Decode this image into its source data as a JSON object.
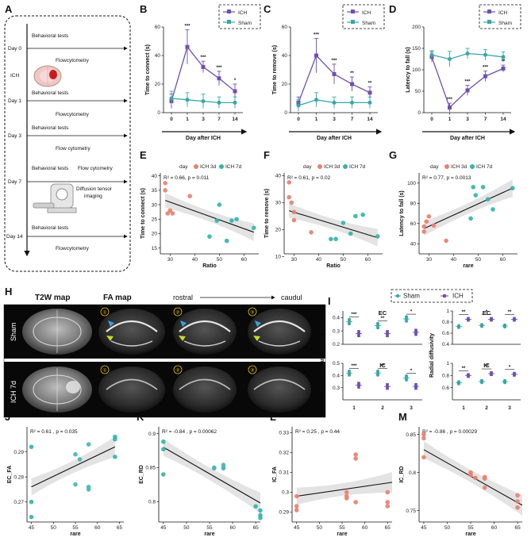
{
  "panel_labels": {
    "A": "A",
    "B": "B",
    "C": "C",
    "D": "D",
    "E": "E",
    "F": "F",
    "G": "G",
    "H": "H",
    "I": "I",
    "J": "J",
    "K": "K",
    "L": "L",
    "M": "M"
  },
  "colors": {
    "ich": "#6f4fb0",
    "sham": "#3aa6a8",
    "ich3d": "#e8806f",
    "ich7d": "#33b5ad",
    "line": "#111111",
    "band": "#d9d9d9"
  },
  "timeline": {
    "events": [
      {
        "day": "Day 0",
        "items": [
          "Behavioral tests",
          "Flowcytometry"
        ]
      },
      {
        "day": "ICH",
        "items": []
      },
      {
        "day": "Day 1",
        "items": [
          "Behavioral tests",
          "Flowcytometry"
        ]
      },
      {
        "day": "Day 3",
        "items": [
          "Behavioral tests",
          "Flow cytometry"
        ]
      },
      {
        "day": "Day 7",
        "items": [
          "Behavioral tests",
          "Flow cytometry",
          "Diffusion tensor",
          "imaging"
        ]
      },
      {
        "day": "Day 14",
        "items": [
          "Behavioral tests",
          "Flowcytometry"
        ]
      }
    ]
  },
  "line_legend": {
    "ich": "ICH",
    "sham": "Sham"
  },
  "day_legend": {
    "title": "day",
    "a": "ICH 3d",
    "b": "ICH 7d"
  },
  "mri": {
    "col_t2w": "T2W map",
    "col_fa": "FA map",
    "rostral": "rostral",
    "caudal": "caudul",
    "row_sham": "Sham",
    "row_ich": "ICH 7d",
    "circles": [
      "①",
      "②",
      "③"
    ]
  },
  "panel_i": {
    "legend_sham": "Sham",
    "legend_ich": "ICH"
  },
  "chart_data": [
    {
      "id": "B",
      "type": "line",
      "title": "",
      "xlabel": "Day after ICH",
      "ylabel": "Time to connect (s)",
      "categories": [
        "0",
        "1",
        "3",
        "7",
        "14"
      ],
      "ylim": [
        0,
        60
      ],
      "yticks": [
        0,
        20,
        40,
        60
      ],
      "series": [
        {
          "name": "ICH",
          "values": [
            8,
            46,
            32,
            24,
            15
          ],
          "err": [
            5,
            12,
            4,
            5,
            5
          ]
        },
        {
          "name": "Sham",
          "values": [
            10,
            9,
            8,
            7,
            7
          ],
          "err": [
            5,
            5,
            5,
            4,
            4
          ]
        }
      ],
      "sig": [
        "",
        "***",
        "***",
        "***",
        "*"
      ]
    },
    {
      "id": "C",
      "type": "line",
      "title": "",
      "xlabel": "Day after ICH",
      "ylabel": "Time to remove (s)",
      "categories": [
        "0",
        "1",
        "3",
        "7",
        "14"
      ],
      "ylim": [
        0,
        60
      ],
      "yticks": [
        0,
        20,
        40,
        60
      ],
      "series": [
        {
          "name": "ICH",
          "values": [
            7,
            40,
            27,
            20,
            14
          ],
          "err": [
            4,
            12,
            7,
            5,
            4
          ]
        },
        {
          "name": "Sham",
          "values": [
            5,
            9,
            7,
            7,
            7
          ],
          "err": [
            4,
            5,
            4,
            4,
            4
          ]
        }
      ],
      "sig": [
        "",
        "***",
        "***",
        "**",
        "**"
      ]
    },
    {
      "id": "D",
      "type": "line",
      "title": "",
      "xlabel": "Day after ICH",
      "ylabel": "Latency to fall (s)",
      "categories": [
        "0",
        "1",
        "3",
        "7",
        "14"
      ],
      "ylim": [
        0,
        200
      ],
      "yticks": [
        0,
        50,
        100,
        150,
        200
      ],
      "series": [
        {
          "name": "ICH",
          "values": [
            130,
            12,
            52,
            85,
            103
          ],
          "err": [
            12,
            10,
            12,
            12,
            8
          ]
        },
        {
          "name": "Sham",
          "values": [
            135,
            125,
            138,
            135,
            130
          ],
          "err": [
            10,
            18,
            12,
            12,
            12
          ]
        }
      ],
      "sig": [
        "",
        "***",
        "***",
        "***",
        "**"
      ]
    },
    {
      "id": "E",
      "type": "scatter",
      "title": "",
      "xlabel": "Ratio",
      "ylabel": "Time to connect (s)",
      "stat": "R² = 0.66, p = 0.011",
      "xlim": [
        26,
        66
      ],
      "ylim": [
        13,
        41
      ],
      "xticks": [
        30,
        40,
        50,
        60
      ],
      "yticks": [
        15,
        20,
        25,
        30,
        35,
        40
      ],
      "fit": [
        [
          28,
          31.5
        ],
        [
          64,
          20.5
        ]
      ],
      "series": [
        {
          "name": "ICH 3d",
          "points": [
            [
              28,
              37.5
            ],
            [
              28,
              35
            ],
            [
              29,
              27
            ],
            [
              30,
              28
            ],
            [
              31,
              27
            ],
            [
              38,
              33
            ]
          ]
        },
        {
          "name": "ICH 7d",
          "points": [
            [
              46,
              19
            ],
            [
              49,
              24.5
            ],
            [
              50,
              30
            ],
            [
              53,
              17.5
            ],
            [
              55,
              24.5
            ],
            [
              57,
              25
            ],
            [
              64,
              22
            ]
          ]
        }
      ]
    },
    {
      "id": "F",
      "type": "scatter",
      "title": "",
      "xlabel": "Ratio",
      "ylabel": "Time to remove (s)",
      "stat": "R² = 0.61, p = 0.02",
      "xlim": [
        26,
        66
      ],
      "ylim": [
        11,
        41
      ],
      "xticks": [
        30,
        40,
        50,
        60
      ],
      "yticks": [
        10,
        20,
        30,
        40
      ],
      "fit": [
        [
          28,
          27
        ],
        [
          64,
          17
        ]
      ],
      "series": [
        {
          "name": "ICH 3d",
          "points": [
            [
              28,
              37.5
            ],
            [
              28,
              32
            ],
            [
              29,
              30
            ],
            [
              30,
              23.5
            ],
            [
              30,
              26.5
            ],
            [
              37,
              19
            ]
          ]
        },
        {
          "name": "ICH 7d",
          "points": [
            [
              45,
              16.5
            ],
            [
              47,
              16.5
            ],
            [
              50,
              22.5
            ],
            [
              53,
              18.5
            ],
            [
              55,
              25
            ],
            [
              58,
              25.5
            ],
            [
              64,
              17.5
            ]
          ]
        }
      ]
    },
    {
      "id": "G",
      "type": "scatter",
      "title": "",
      "xlabel": "rare",
      "ylabel": "Latency to fall (s)",
      "stat": "R² = 0.77, p = 0.0013",
      "xlim": [
        26,
        66
      ],
      "ylim": [
        30,
        110
      ],
      "xticks": [
        30,
        40,
        50,
        60
      ],
      "yticks": [
        40,
        60,
        80,
        100
      ],
      "fit": [
        [
          28,
          55
        ],
        [
          64,
          95
        ]
      ],
      "series": [
        {
          "name": "ICH 3d",
          "points": [
            [
              28,
              52
            ],
            [
              28,
              57
            ],
            [
              29,
              62
            ],
            [
              30,
              67
            ],
            [
              32,
              58
            ],
            [
              37,
              43
            ]
          ]
        },
        {
          "name": "ICH 7d",
          "points": [
            [
              47,
              65
            ],
            [
              48,
              96
            ],
            [
              49,
              88
            ],
            [
              52,
              96
            ],
            [
              54,
              84
            ],
            [
              56,
              74
            ],
            [
              64,
              95
            ]
          ]
        }
      ]
    },
    {
      "id": "I",
      "type": "scatter",
      "title": "",
      "xlabel": "",
      "ylabel": "Fractional anisotropy value",
      "categories": [
        "1",
        "2",
        "3"
      ],
      "groups": [
        {
          "label": "EC",
          "ylim": [
            0.2,
            0.45
          ],
          "yticks": [
            0.2,
            0.3,
            0.4
          ],
          "sham": [
            0.37,
            0.34,
            0.39
          ],
          "ich": [
            0.28,
            0.28,
            0.29
          ],
          "sig": [
            "***",
            "**",
            "*"
          ]
        },
        {
          "label": "IC",
          "ylim": [
            0.2,
            0.5
          ],
          "yticks": [
            0.3,
            0.4,
            0.5
          ],
          "sham": [
            0.42,
            0.42,
            0.38
          ],
          "ich": [
            0.32,
            0.31,
            0.31
          ],
          "sig": [
            "***",
            "**",
            "*"
          ]
        }
      ]
    },
    {
      "id": "I2",
      "type": "scatter",
      "title": "",
      "xlabel": "",
      "ylabel": "Radial diffusivity",
      "categories": [
        "1",
        "2",
        "3"
      ],
      "groups": [
        {
          "label": "EC",
          "ylim": [
            0.4,
            1.0
          ],
          "yticks": [
            0.4,
            0.6,
            0.8,
            1.0
          ],
          "sham": [
            0.72,
            0.74,
            0.73
          ],
          "ich": [
            0.85,
            0.85,
            0.85
          ],
          "sig": [
            "**",
            "*",
            "**"
          ]
        },
        {
          "label": "IC",
          "ylim": [
            0.4,
            1.0
          ],
          "yticks": [
            0.6,
            0.8,
            1.0
          ],
          "sham": [
            0.68,
            0.7,
            0.7
          ],
          "ich": [
            0.8,
            0.83,
            0.82
          ],
          "sig": [
            "**",
            "**",
            "*"
          ]
        }
      ]
    },
    {
      "id": "J",
      "type": "scatter",
      "title": "",
      "xlabel": "rare",
      "ylabel": "EC_FA",
      "stat": "R² = 0.61 ,  p = 0.035",
      "xlim": [
        44,
        66
      ],
      "ylim": [
        0.262,
        0.3
      ],
      "xticks": [
        45,
        50,
        55,
        60,
        65
      ],
      "yticks": [
        0.27,
        0.28,
        0.29
      ],
      "fit": [
        [
          45,
          0.276
        ],
        [
          64,
          0.292
        ]
      ],
      "series": [
        {
          "name": "",
          "points": [
            [
              45,
              0.292
            ],
            [
              45,
              0.27
            ],
            [
              45,
              0.264
            ],
            [
              55,
              0.289
            ],
            [
              55,
              0.277
            ],
            [
              56,
              0.287
            ],
            [
              58,
              0.293
            ],
            [
              58,
              0.276
            ],
            [
              58,
              0.275
            ],
            [
              64,
              0.296
            ],
            [
              64,
              0.295
            ],
            [
              64,
              0.288
            ]
          ]
        }
      ]
    },
    {
      "id": "K",
      "type": "scatter",
      "title": "",
      "xlabel": "rare",
      "ylabel": "EC_RD",
      "stat": "R² = -0.84 ,  p = 0.00062",
      "xlim": [
        44,
        66
      ],
      "ylim": [
        0.77,
        0.91
      ],
      "xticks": [
        45,
        50,
        55,
        60,
        65
      ],
      "yticks": [
        0.8,
        0.85,
        0.9
      ],
      "fit": [
        [
          45,
          0.88
        ],
        [
          66,
          0.798
        ]
      ],
      "series": [
        {
          "name": "",
          "points": [
            [
              45,
              0.888
            ],
            [
              45,
              0.877
            ],
            [
              45,
              0.84
            ],
            [
              56,
              0.85
            ],
            [
              56,
              0.849
            ],
            [
              58,
              0.85
            ],
            [
              58,
              0.854
            ],
            [
              58,
              0.849
            ],
            [
              65,
              0.793
            ],
            [
              66,
              0.787
            ],
            [
              66,
              0.78
            ],
            [
              66,
              0.776
            ]
          ]
        }
      ]
    },
    {
      "id": "L",
      "type": "scatter",
      "title": "",
      "xlabel": "rare",
      "ylabel": "IC_FA",
      "stat": "R² = 0.25 ,  p = 0.44",
      "xlim": [
        44,
        66
      ],
      "ylim": [
        0.285,
        0.333
      ],
      "xticks": [
        45,
        50,
        55,
        60,
        65
      ],
      "yticks": [
        0.29,
        0.3,
        0.31,
        0.32,
        0.33
      ],
      "fit": [
        [
          45,
          0.298
        ],
        [
          66,
          0.305
        ]
      ],
      "series": [
        {
          "name": "",
          "points": [
            [
              45,
              0.293
            ],
            [
              45,
              0.291
            ],
            [
              45,
              0.298
            ],
            [
              56,
              0.3
            ],
            [
              56,
              0.297
            ],
            [
              56,
              0.298
            ],
            [
              58,
              0.319
            ],
            [
              58,
              0.317
            ],
            [
              58,
              0.295
            ],
            [
              65,
              0.3
            ],
            [
              65,
              0.295
            ],
            [
              65,
              0.293
            ]
          ]
        }
      ]
    },
    {
      "id": "M",
      "type": "scatter",
      "title": "",
      "xlabel": "rare",
      "ylabel": "IC_RD",
      "stat": "R² = -0.86 ,  p = 0.00029",
      "xlim": [
        44,
        66
      ],
      "ylim": [
        0.735,
        0.86
      ],
      "xticks": [
        45,
        50,
        55,
        60,
        65
      ],
      "yticks": [
        0.75,
        0.8,
        0.85
      ],
      "fit": [
        [
          45,
          0.83
        ],
        [
          66,
          0.757
        ]
      ],
      "series": [
        {
          "name": "",
          "points": [
            [
              45,
              0.85
            ],
            [
              45,
              0.845
            ],
            [
              45,
              0.82
            ],
            [
              55,
              0.8
            ],
            [
              55,
              0.797
            ],
            [
              56,
              0.793
            ],
            [
              58,
              0.794
            ],
            [
              58,
              0.792
            ],
            [
              58,
              0.78
            ],
            [
              65,
              0.77
            ],
            [
              65,
              0.762
            ],
            [
              65,
              0.754
            ]
          ]
        }
      ]
    }
  ]
}
